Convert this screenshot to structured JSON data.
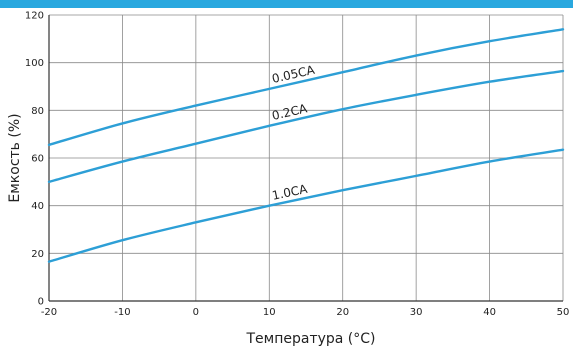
{
  "chart_data": {
    "type": "line",
    "title": "",
    "xlabel": "Температура (°C)",
    "ylabel": "Емкость (%)",
    "xlim": [
      -20,
      50
    ],
    "ylim": [
      0,
      120
    ],
    "x_ticks": [
      -20,
      -10,
      0,
      10,
      20,
      30,
      40,
      50
    ],
    "y_ticks": [
      0,
      20,
      40,
      60,
      80,
      100,
      120
    ],
    "grid": true,
    "legend": "none",
    "line_color": "#2d9fd6",
    "accent_color": "#29a8df",
    "series": [
      {
        "name": "0.05CA",
        "x": [
          -20,
          -10,
          0,
          10,
          20,
          30,
          40,
          50
        ],
        "values": [
          65.5,
          74.5,
          82,
          89,
          96,
          103,
          109,
          114
        ]
      },
      {
        "name": "0.2CA",
        "x": [
          -20,
          -10,
          0,
          10,
          20,
          30,
          40,
          50
        ],
        "values": [
          50,
          58.5,
          66,
          73.5,
          80.5,
          86.5,
          92,
          96.5
        ]
      },
      {
        "name": "1.0CA",
        "x": [
          -20,
          -10,
          0,
          10,
          20,
          30,
          40,
          50
        ],
        "values": [
          16.5,
          25.5,
          33,
          40,
          46.5,
          52.5,
          58.5,
          63.5
        ]
      }
    ]
  }
}
